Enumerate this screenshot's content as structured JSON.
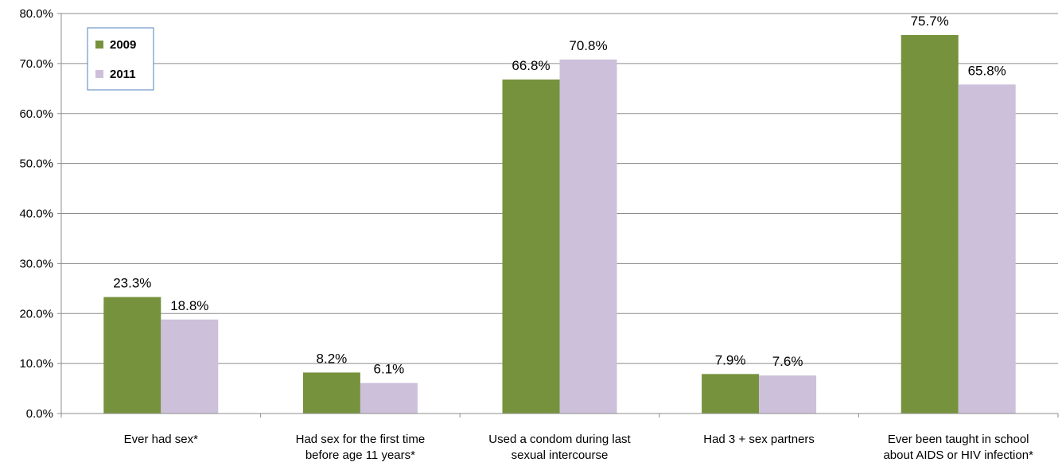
{
  "chart_data": {
    "type": "bar",
    "categories": [
      [
        "Ever had sex*"
      ],
      [
        "Had sex for the first time",
        "before age 11 years*"
      ],
      [
        "Used a condom during last",
        "sexual intercourse"
      ],
      [
        "Had 3 + sex partners"
      ],
      [
        "Ever been taught  in school",
        "about AIDS or HIV infection*"
      ]
    ],
    "series": [
      {
        "name": "2009",
        "color": "#76923c",
        "values": [
          23.3,
          8.2,
          66.8,
          7.9,
          75.7
        ],
        "labels": [
          "23.3%",
          "8.2%",
          "66.8%",
          "7.9%",
          "75.7%"
        ]
      },
      {
        "name": "2011",
        "color": "#ccc0da",
        "values": [
          18.8,
          6.1,
          70.8,
          7.6,
          65.8
        ],
        "labels": [
          "18.8%",
          "6.1%",
          "70.8%",
          "7.6%",
          "65.8%"
        ]
      }
    ],
    "ylim": [
      0,
      80
    ],
    "yticks": [
      "0.0%",
      "10.0%",
      "20.0%",
      "30.0%",
      "40.0%",
      "50.0%",
      "60.0%",
      "70.0%",
      "80.0%"
    ],
    "grid": true,
    "legend": "top-left",
    "title": "",
    "xlabel": "",
    "ylabel": ""
  }
}
